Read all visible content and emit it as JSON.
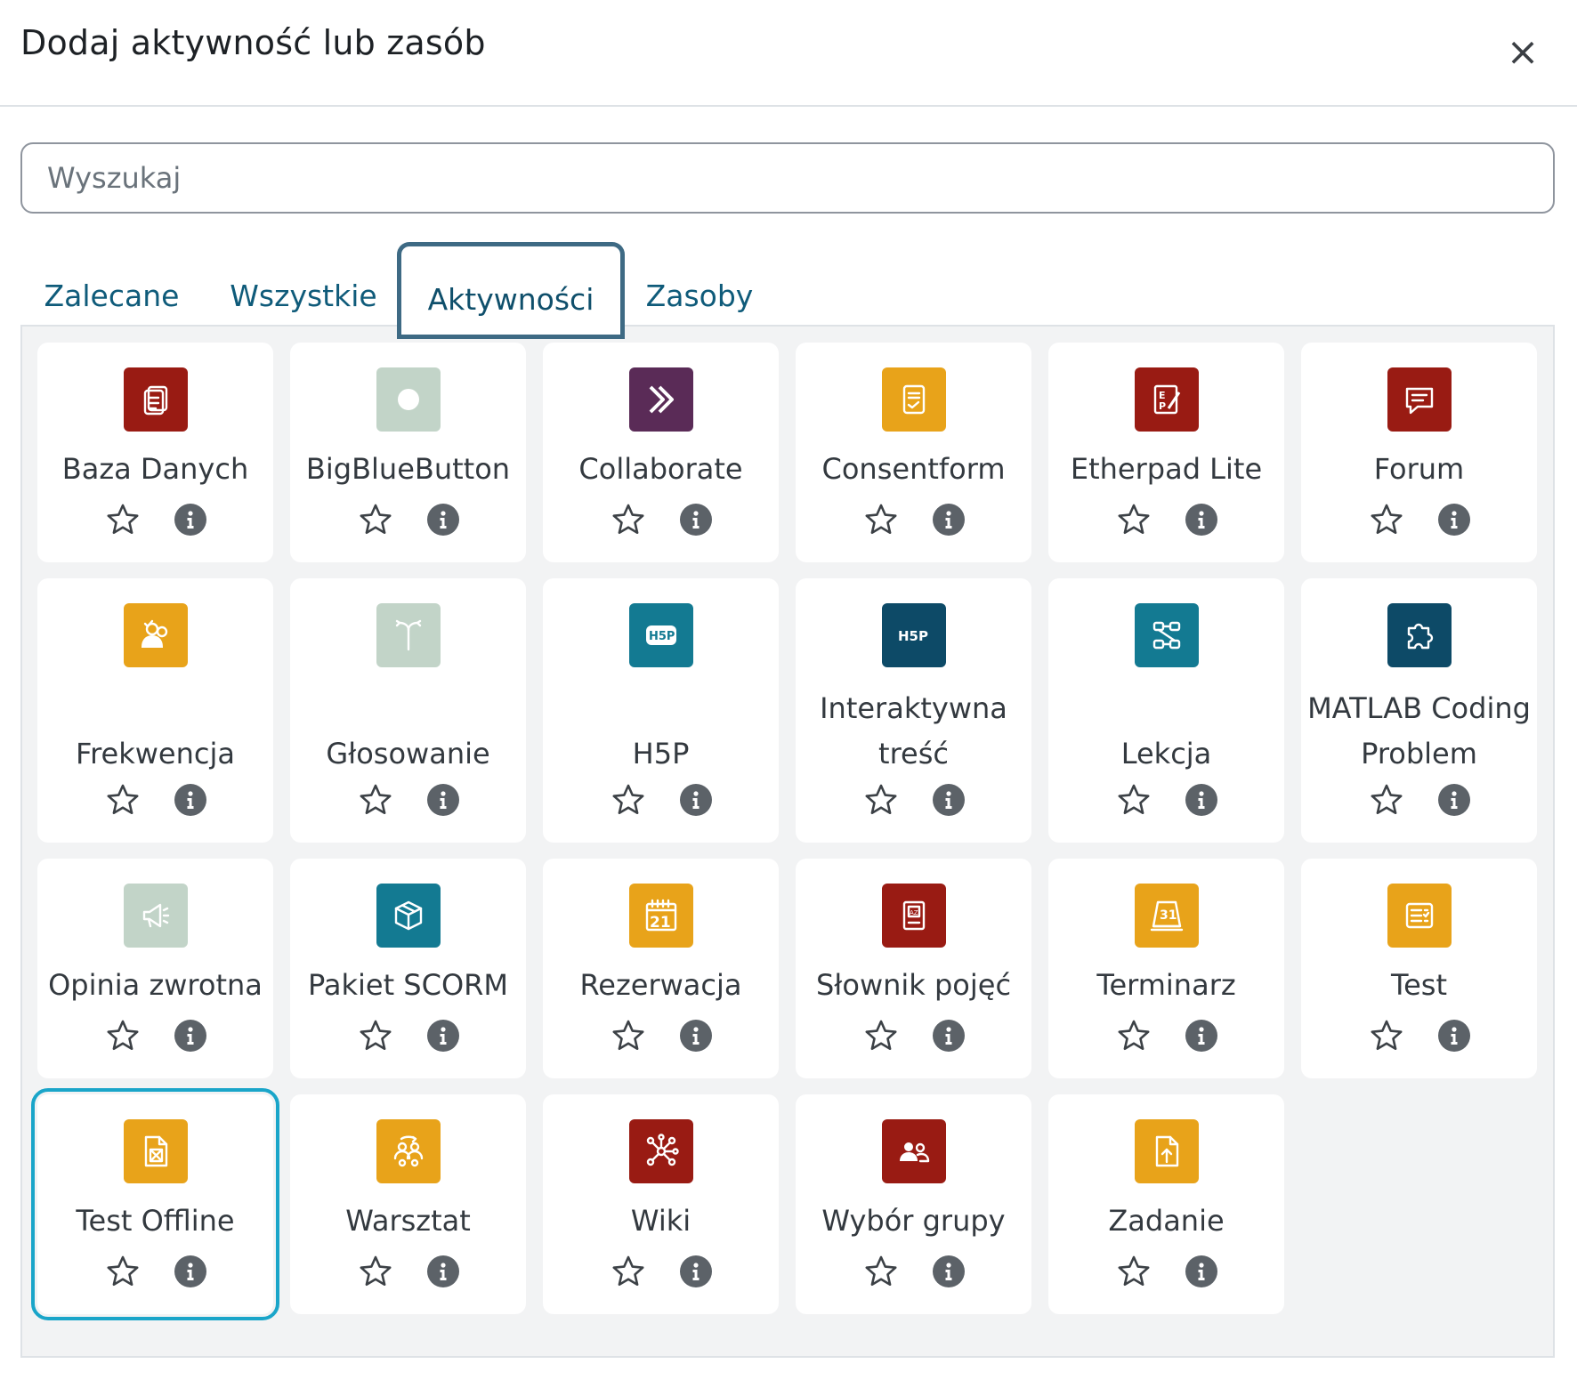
{
  "dialog": {
    "title": "Dodaj aktywność lub zasób",
    "close_symbol": "×"
  },
  "search": {
    "placeholder": "Wyszukaj"
  },
  "tabs": [
    {
      "label": "Zalecane",
      "active": false
    },
    {
      "label": "Wszystkie",
      "active": false
    },
    {
      "label": "Aktywności",
      "active": true
    },
    {
      "label": "Zasoby",
      "active": false
    }
  ],
  "colors": {
    "red": "#991b13",
    "orange": "#e8a31a",
    "teal": "#137a92",
    "navy": "#0d4a67",
    "purple": "#5a2b57",
    "sage": "#c2d4c8",
    "focus": "#1aa5c9",
    "tab_border": "#3e6a84"
  },
  "activities": [
    {
      "name": "Baza Danych",
      "icon": "database-icon",
      "color": "#991b13"
    },
    {
      "name": "BigBlueButton",
      "icon": "bigbluebutton-icon",
      "color": "#c2d4c8"
    },
    {
      "name": "Collaborate",
      "icon": "collaborate-icon",
      "color": "#5a2b57"
    },
    {
      "name": "Consentform",
      "icon": "consentform-icon",
      "color": "#e8a31a"
    },
    {
      "name": "Etherpad Lite",
      "icon": "etherpad-icon",
      "color": "#991b13"
    },
    {
      "name": "Forum",
      "icon": "forum-icon",
      "color": "#991b13"
    },
    {
      "name": "Frekwencja",
      "icon": "attendance-icon",
      "color": "#e8a31a"
    },
    {
      "name": "Głosowanie",
      "icon": "choice-icon",
      "color": "#c2d4c8"
    },
    {
      "name": "H5P",
      "icon": "h5p-icon",
      "color": "#137a92"
    },
    {
      "name": "Interaktywna treść",
      "icon": "h5p-interactive-icon",
      "color": "#0d4a67"
    },
    {
      "name": "Lekcja",
      "icon": "lesson-icon",
      "color": "#137a92"
    },
    {
      "name": "MATLAB Coding Problem",
      "icon": "puzzle-icon",
      "color": "#0d4a67"
    },
    {
      "name": "Opinia zwrotna",
      "icon": "feedback-icon",
      "color": "#c2d4c8"
    },
    {
      "name": "Pakiet SCORM",
      "icon": "scorm-icon",
      "color": "#137a92"
    },
    {
      "name": "Rezerwacja",
      "icon": "calendar-21-icon",
      "color": "#e8a31a"
    },
    {
      "name": "Słownik pojęć",
      "icon": "glossary-icon",
      "color": "#991b13"
    },
    {
      "name": "Terminarz",
      "icon": "calendar-31-icon",
      "color": "#e8a31a"
    },
    {
      "name": "Test",
      "icon": "quiz-icon",
      "color": "#e8a31a"
    },
    {
      "name": "Test Offline",
      "icon": "offline-quiz-icon",
      "color": "#e8a31a",
      "focused": true
    },
    {
      "name": "Warsztat",
      "icon": "workshop-icon",
      "color": "#e8a31a"
    },
    {
      "name": "Wiki",
      "icon": "wiki-icon",
      "color": "#991b13"
    },
    {
      "name": "Wybór grupy",
      "icon": "group-choice-icon",
      "color": "#991b13"
    },
    {
      "name": "Zadanie",
      "icon": "assignment-icon",
      "color": "#e8a31a"
    }
  ]
}
